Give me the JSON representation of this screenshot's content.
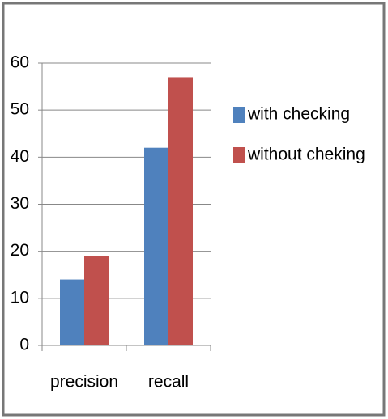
{
  "chart_data": {
    "type": "bar",
    "categories": [
      "precision",
      "recall"
    ],
    "series": [
      {
        "name": "with checking",
        "color": "#4f81bd",
        "values": [
          14,
          42
        ]
      },
      {
        "name": "without cheking",
        "color": "#c0504d",
        "values": [
          19,
          57
        ]
      }
    ],
    "ylim": [
      0,
      60
    ],
    "yticks": [
      0,
      10,
      20,
      30,
      40,
      50,
      60
    ],
    "grid": true,
    "legend": "right"
  }
}
